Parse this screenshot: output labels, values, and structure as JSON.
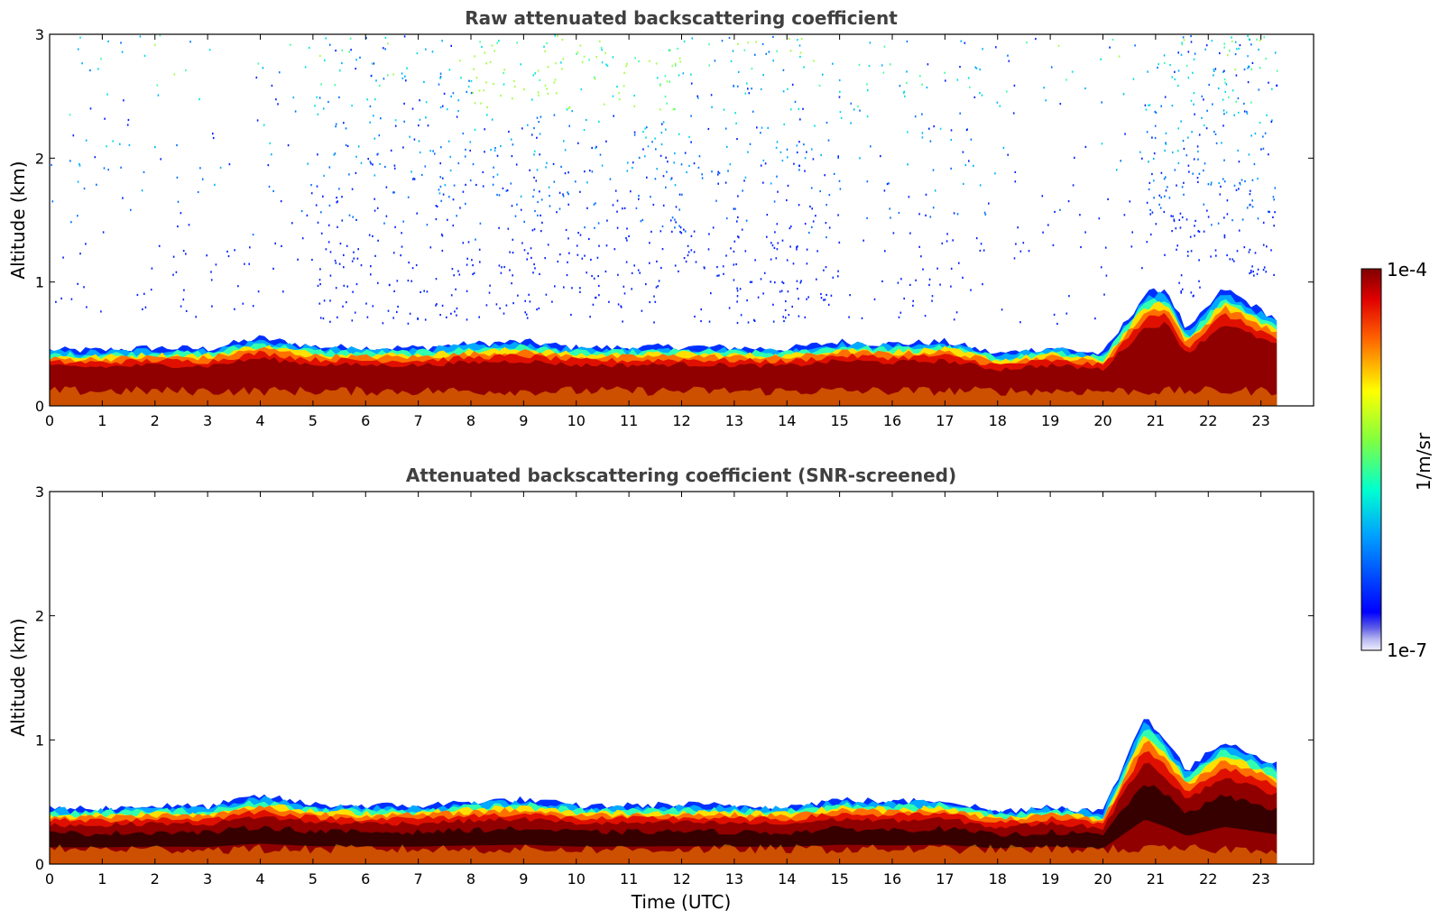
{
  "chart_data": [
    {
      "type": "heatmap",
      "title": "Raw attenuated backscattering coefficient",
      "xlabel": "",
      "ylabel": "Altitude (km)",
      "xlim": [
        0,
        24
      ],
      "ylim": [
        0,
        3
      ],
      "x_ticks": [
        "0",
        "1",
        "2",
        "3",
        "4",
        "5",
        "6",
        "7",
        "8",
        "9",
        "10",
        "11",
        "12",
        "13",
        "14",
        "15",
        "16",
        "17",
        "18",
        "19",
        "20",
        "21",
        "22",
        "23"
      ],
      "y_ticks": [
        "0",
        "1",
        "2",
        "3"
      ],
      "data_end_hour": 23.3,
      "boundary_layer_top_km": [
        [
          0,
          0.45
        ],
        [
          1,
          0.45
        ],
        [
          2,
          0.47
        ],
        [
          3,
          0.46
        ],
        [
          4,
          0.55
        ],
        [
          5,
          0.48
        ],
        [
          6,
          0.47
        ],
        [
          7,
          0.47
        ],
        [
          8,
          0.5
        ],
        [
          9,
          0.52
        ],
        [
          10,
          0.47
        ],
        [
          11,
          0.47
        ],
        [
          12,
          0.48
        ],
        [
          13,
          0.47
        ],
        [
          14,
          0.46
        ],
        [
          15,
          0.52
        ],
        [
          16,
          0.5
        ],
        [
          17,
          0.52
        ],
        [
          18,
          0.42
        ],
        [
          19,
          0.47
        ],
        [
          20,
          0.42
        ],
        [
          20.8,
          0.9
        ],
        [
          21.2,
          0.95
        ],
        [
          21.6,
          0.6
        ],
        [
          22.3,
          0.95
        ],
        [
          23.3,
          0.7
        ]
      ],
      "noise": "sparse noise up to 3 km, densest 7-13 UTC and 21-23.3 UTC"
    },
    {
      "type": "heatmap",
      "title": "Attenuated backscattering coefficient (SNR-screened)",
      "xlabel": "Time (UTC)",
      "ylabel": "Altitude (km)",
      "xlim": [
        0,
        24
      ],
      "ylim": [
        0,
        3
      ],
      "x_ticks": [
        "0",
        "1",
        "2",
        "3",
        "4",
        "5",
        "6",
        "7",
        "8",
        "9",
        "10",
        "11",
        "12",
        "13",
        "14",
        "15",
        "16",
        "17",
        "18",
        "19",
        "20",
        "21",
        "22",
        "23"
      ],
      "y_ticks": [
        "0",
        "1",
        "2",
        "3"
      ],
      "data_end_hour": 23.3,
      "boundary_layer_top_km": [
        [
          0,
          0.45
        ],
        [
          1,
          0.45
        ],
        [
          2,
          0.47
        ],
        [
          3,
          0.46
        ],
        [
          4,
          0.55
        ],
        [
          5,
          0.48
        ],
        [
          6,
          0.47
        ],
        [
          7,
          0.47
        ],
        [
          8,
          0.5
        ],
        [
          9,
          0.52
        ],
        [
          10,
          0.47
        ],
        [
          11,
          0.47
        ],
        [
          12,
          0.48
        ],
        [
          13,
          0.47
        ],
        [
          14,
          0.46
        ],
        [
          15,
          0.52
        ],
        [
          16,
          0.5
        ],
        [
          17,
          0.52
        ],
        [
          18,
          0.42
        ],
        [
          19,
          0.47
        ],
        [
          20,
          0.42
        ],
        [
          20.8,
          1.2
        ],
        [
          21.2,
          1.0
        ],
        [
          21.6,
          0.75
        ],
        [
          22.3,
          1.0
        ],
        [
          23.3,
          0.8
        ]
      ],
      "noise": "none (screened)"
    }
  ],
  "colorbar": {
    "label": "1/m/sr",
    "max_label": "1e-4",
    "min_label": "1e-7",
    "colormap": "jet"
  }
}
